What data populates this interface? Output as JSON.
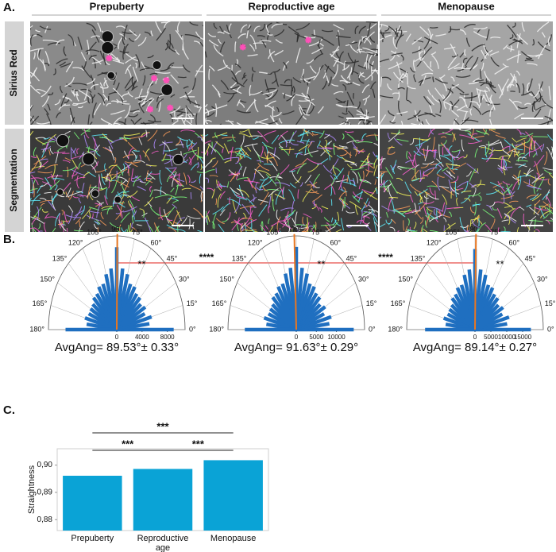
{
  "panels": {
    "a": "A.",
    "b": "B.",
    "c": "C."
  },
  "panel_a": {
    "columns": [
      "Prepuberty",
      "Reproductive age",
      "Menopause"
    ],
    "rows": [
      "Sirius Red",
      "Segmentation"
    ]
  },
  "panel_b": {
    "significance": [
      "****",
      "****"
    ],
    "significance_color": "#e0201b"
  },
  "chart_data": [
    {
      "type": "polar",
      "x": [
        0,
        7.5,
        15,
        22.5,
        30,
        37.5,
        45,
        52.5,
        60,
        67.5,
        75,
        82.5,
        90,
        97.5,
        105,
        112.5,
        120,
        127.5,
        135,
        142.5,
        150,
        157.5,
        165,
        172.5,
        180
      ],
      "values": [
        9000,
        5200,
        5700,
        4800,
        5200,
        4800,
        5200,
        5200,
        5700,
        5700,
        6600,
        7100,
        9500,
        7100,
        6600,
        5700,
        5700,
        5200,
        5200,
        4800,
        4800,
        4800,
        5200,
        4800,
        8100
      ],
      "xlim": [
        0,
        180
      ],
      "xticks": [
        {
          "value": 0,
          "label": "0°"
        },
        {
          "value": 15,
          "label": "15°"
        },
        {
          "value": 30,
          "label": "30°"
        },
        {
          "value": 45,
          "label": "45°"
        },
        {
          "value": 60,
          "label": "60°"
        },
        {
          "value": 75,
          "label": "75°"
        },
        {
          "value": 90,
          "label": "90°"
        },
        {
          "value": 105,
          "label": "105°"
        },
        {
          "value": 120,
          "label": "120°"
        },
        {
          "value": 135,
          "label": "135°"
        },
        {
          "value": 150,
          "label": "150°"
        },
        {
          "value": 165,
          "label": "165°"
        },
        {
          "value": 180,
          "label": "180°"
        }
      ],
      "rlim": [
        0,
        10800
      ],
      "rticks": [
        0,
        4000,
        8000
      ],
      "color": "#1f6fc0",
      "mean": 89.53,
      "mean_color": "#e87722",
      "annotation": "AvgAng= 89.53°± 0.33°",
      "marker_text": "**",
      "marker_color": "#4a86d4"
    },
    {
      "type": "polar",
      "x": [
        0,
        7.5,
        15,
        22.5,
        30,
        37.5,
        45,
        52.5,
        60,
        67.5,
        75,
        82.5,
        90,
        97.5,
        105,
        112.5,
        120,
        127.5,
        135,
        142.5,
        150,
        157.5,
        165,
        172.5,
        180
      ],
      "values": [
        14300,
        8300,
        9000,
        7500,
        8300,
        7500,
        8300,
        8300,
        9000,
        9000,
        10500,
        11300,
        15000,
        11300,
        10500,
        9000,
        9000,
        8300,
        8300,
        7500,
        7500,
        7500,
        8300,
        7500,
        12800
      ],
      "xlim": [
        0,
        180
      ],
      "xticks": [
        {
          "value": 0,
          "label": "0°"
        },
        {
          "value": 15,
          "label": "15°"
        },
        {
          "value": 30,
          "label": "30°"
        },
        {
          "value": 45,
          "label": "45°"
        },
        {
          "value": 60,
          "label": "60°"
        },
        {
          "value": 75,
          "label": "75°"
        },
        {
          "value": 90,
          "label": "90°"
        },
        {
          "value": 105,
          "label": "105°"
        },
        {
          "value": 120,
          "label": "120°"
        },
        {
          "value": 135,
          "label": "135°"
        },
        {
          "value": 150,
          "label": "150°"
        },
        {
          "value": 165,
          "label": "165°"
        },
        {
          "value": 180,
          "label": "180°"
        }
      ],
      "rlim": [
        0,
        17000
      ],
      "rticks": [
        0,
        5000,
        10000
      ],
      "color": "#1f6fc0",
      "mean": 91.63,
      "mean_color": "#e87722",
      "annotation": "AvgAng= 91.63°± 0.29°",
      "marker_text": "**",
      "marker_color": "#4a86d4"
    },
    {
      "type": "polar",
      "x": [
        0,
        7.5,
        15,
        22.5,
        30,
        37.5,
        45,
        52.5,
        60,
        67.5,
        75,
        82.5,
        90,
        97.5,
        105,
        112.5,
        120,
        127.5,
        135,
        142.5,
        150,
        157.5,
        165,
        172.5,
        180
      ],
      "values": [
        17600,
        10200,
        11100,
        9300,
        10200,
        9300,
        10200,
        10200,
        11100,
        11100,
        13000,
        13900,
        18500,
        13900,
        13000,
        11100,
        11100,
        10200,
        10200,
        9300,
        9300,
        9300,
        10200,
        9300,
        15700
      ],
      "xlim": [
        0,
        180
      ],
      "xticks": [
        {
          "value": 0,
          "label": "0°"
        },
        {
          "value": 15,
          "label": "15°"
        },
        {
          "value": 30,
          "label": "30°"
        },
        {
          "value": 45,
          "label": "45°"
        },
        {
          "value": 60,
          "label": "60°"
        },
        {
          "value": 75,
          "label": "75°"
        },
        {
          "value": 90,
          "label": "90°"
        },
        {
          "value": 105,
          "label": "105°"
        },
        {
          "value": 120,
          "label": "120°"
        },
        {
          "value": 135,
          "label": "135°"
        },
        {
          "value": 150,
          "label": "150°"
        },
        {
          "value": 165,
          "label": "165°"
        },
        {
          "value": 180,
          "label": "180°"
        }
      ],
      "rlim": [
        0,
        21500
      ],
      "rticks": [
        0,
        5000,
        10000,
        15000
      ],
      "color": "#1f6fc0",
      "mean": 89.14,
      "mean_color": "#e87722",
      "annotation": "AvgAng= 89.14°± 0.27°",
      "marker_text": "**",
      "marker_color": "#4a86d4"
    },
    {
      "type": "bar",
      "categories": [
        "Prepuberty",
        "Reproductive age",
        "Menopause"
      ],
      "values": [
        0.8961,
        0.8986,
        0.9018
      ],
      "color": "#0aa3d6",
      "ylabel": "Straightness",
      "ylim": [
        0.876,
        0.906
      ],
      "yticks": [
        {
          "value": 0.88,
          "label": "0,88"
        },
        {
          "value": 0.89,
          "label": "0,89"
        },
        {
          "value": 0.9,
          "label": "0,90"
        }
      ],
      "significance": [
        "***",
        "***",
        "***"
      ]
    }
  ]
}
